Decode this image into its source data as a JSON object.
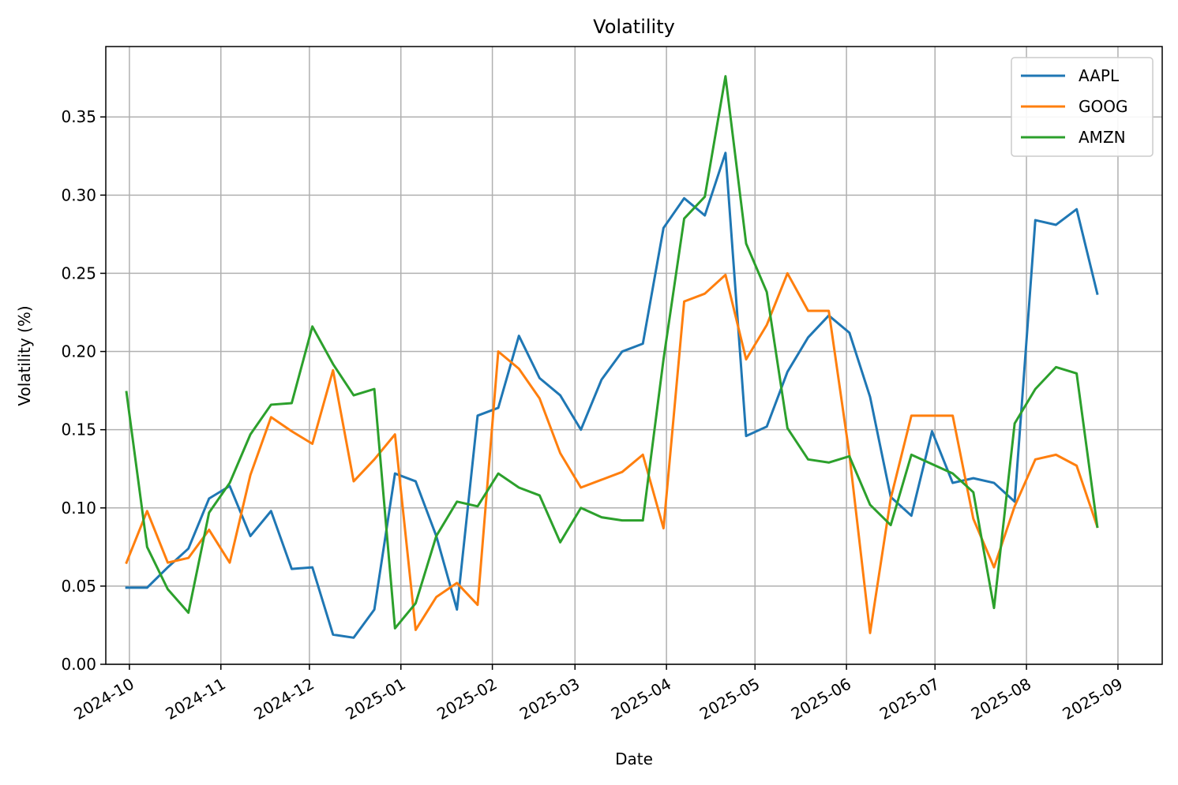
{
  "chart_data": {
    "type": "line",
    "title": "Volatility",
    "xlabel": "Date",
    "ylabel": "Volatility (%)",
    "x_axis_type": "date",
    "xlim": [
      "2024-09-23",
      "2025-09-16"
    ],
    "ylim": [
      0.0,
      0.395
    ],
    "x_ticks": [
      "2024-10-01",
      "2024-11-01",
      "2024-12-01",
      "2025-01-01",
      "2025-02-01",
      "2025-03-01",
      "2025-04-01",
      "2025-05-01",
      "2025-06-01",
      "2025-07-01",
      "2025-08-01",
      "2025-09-01"
    ],
    "x_tick_labels": [
      "2024-10",
      "2024-11",
      "2024-12",
      "2025-01",
      "2025-02",
      "2025-03",
      "2025-04",
      "2025-05",
      "2025-06",
      "2025-07",
      "2025-08",
      "2025-09"
    ],
    "y_ticks": [
      0.0,
      0.05,
      0.1,
      0.15,
      0.2,
      0.25,
      0.3,
      0.35
    ],
    "y_tick_labels": [
      "0.00",
      "0.05",
      "0.10",
      "0.15",
      "0.20",
      "0.25",
      "0.30",
      "0.35"
    ],
    "grid": true,
    "legend_position": "top-right",
    "x": [
      "2024-09-30",
      "2024-10-07",
      "2024-10-14",
      "2024-10-21",
      "2024-10-28",
      "2024-11-04",
      "2024-11-11",
      "2024-11-18",
      "2024-11-25",
      "2024-12-02",
      "2024-12-09",
      "2024-12-16",
      "2024-12-23",
      "2024-12-30",
      "2025-01-06",
      "2025-01-13",
      "2025-01-20",
      "2025-01-27",
      "2025-02-03",
      "2025-02-10",
      "2025-02-17",
      "2025-02-24",
      "2025-03-03",
      "2025-03-10",
      "2025-03-17",
      "2025-03-24",
      "2025-03-31",
      "2025-04-07",
      "2025-04-14",
      "2025-04-21",
      "2025-04-28",
      "2025-05-05",
      "2025-05-12",
      "2025-05-19",
      "2025-05-26",
      "2025-06-02",
      "2025-06-09",
      "2025-06-16",
      "2025-06-23",
      "2025-06-30",
      "2025-07-07",
      "2025-07-14",
      "2025-07-21",
      "2025-07-28",
      "2025-08-04",
      "2025-08-11",
      "2025-08-18",
      "2025-08-25"
    ],
    "series": [
      {
        "name": "AAPL",
        "color": "#1f77b4",
        "values": [
          0.049,
          0.049,
          0.062,
          0.074,
          0.106,
          0.114,
          0.082,
          0.098,
          0.061,
          0.062,
          0.019,
          0.017,
          0.035,
          0.122,
          0.117,
          0.082,
          0.035,
          0.159,
          0.164,
          0.21,
          0.183,
          0.172,
          0.15,
          0.182,
          0.2,
          0.205,
          0.279,
          0.298,
          0.287,
          0.327,
          0.146,
          0.152,
          0.187,
          0.209,
          0.223,
          0.212,
          0.171,
          0.107,
          0.095,
          0.149,
          0.116,
          0.119,
          0.116,
          0.104,
          0.284,
          0.281,
          0.291,
          0.237
        ]
      },
      {
        "name": "GOOG",
        "color": "#ff7f0e",
        "values": [
          0.065,
          0.098,
          0.065,
          0.068,
          0.086,
          0.065,
          0.121,
          0.158,
          0.149,
          0.141,
          0.188,
          0.117,
          0.131,
          0.147,
          0.022,
          0.043,
          0.052,
          0.038,
          0.2,
          0.189,
          0.17,
          0.135,
          0.113,
          0.118,
          0.123,
          0.134,
          0.087,
          0.232,
          0.237,
          0.249,
          0.195,
          0.217,
          0.25,
          0.226,
          0.226,
          0.134,
          0.02,
          0.106,
          0.159,
          0.159,
          0.159,
          0.093,
          0.062,
          0.101,
          0.131,
          0.134,
          0.127,
          0.088
        ]
      },
      {
        "name": "AMZN",
        "color": "#2ca02c",
        "values": [
          0.174,
          0.075,
          0.048,
          0.033,
          0.097,
          0.116,
          0.147,
          0.166,
          0.167,
          0.216,
          0.192,
          0.172,
          0.176,
          0.023,
          0.039,
          0.082,
          0.104,
          0.101,
          0.122,
          0.113,
          0.108,
          0.078,
          0.1,
          0.094,
          0.092,
          0.092,
          0.195,
          0.285,
          0.299,
          0.376,
          0.269,
          0.238,
          0.151,
          0.131,
          0.129,
          0.133,
          0.102,
          0.089,
          0.134,
          0.128,
          0.122,
          0.11,
          0.036,
          0.154,
          0.176,
          0.19,
          0.186,
          0.088
        ]
      }
    ]
  }
}
